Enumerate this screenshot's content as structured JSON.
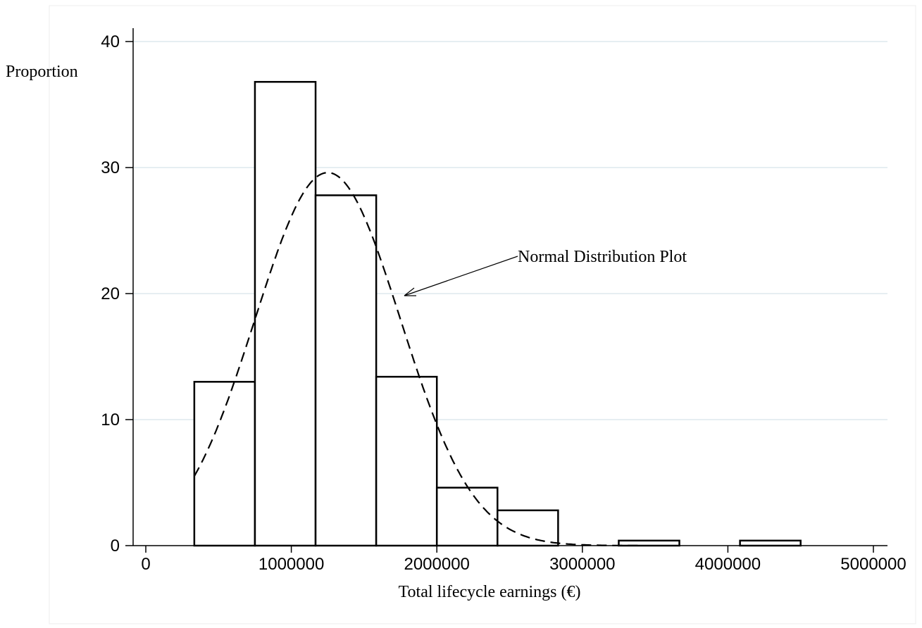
{
  "chart_data": {
    "type": "bar",
    "ylabel": "Proportion",
    "xlabel": "Total lifecycle earnings (€)",
    "annotation": "Normal Distribution Plot",
    "xlim": [
      0,
      5000000
    ],
    "ylim": [
      0,
      40
    ],
    "xticks": [
      0,
      1000000,
      2000000,
      3000000,
      4000000,
      5000000
    ],
    "yticks": [
      0,
      10,
      20,
      30,
      40
    ],
    "grid": true,
    "bin_edges": [
      333333,
      750000,
      1166667,
      1583333,
      2000000,
      2416667,
      2833333,
      3250000,
      3666667,
      4083333,
      4500000
    ],
    "values": [
      13.0,
      36.8,
      27.8,
      13.4,
      4.6,
      2.8,
      0,
      0.4,
      0,
      0.4
    ],
    "overlay": {
      "type": "line",
      "style": "dashed",
      "description": "normal density overlay",
      "mean": 1250000,
      "sd": 500000,
      "peak": 29.6
    }
  }
}
